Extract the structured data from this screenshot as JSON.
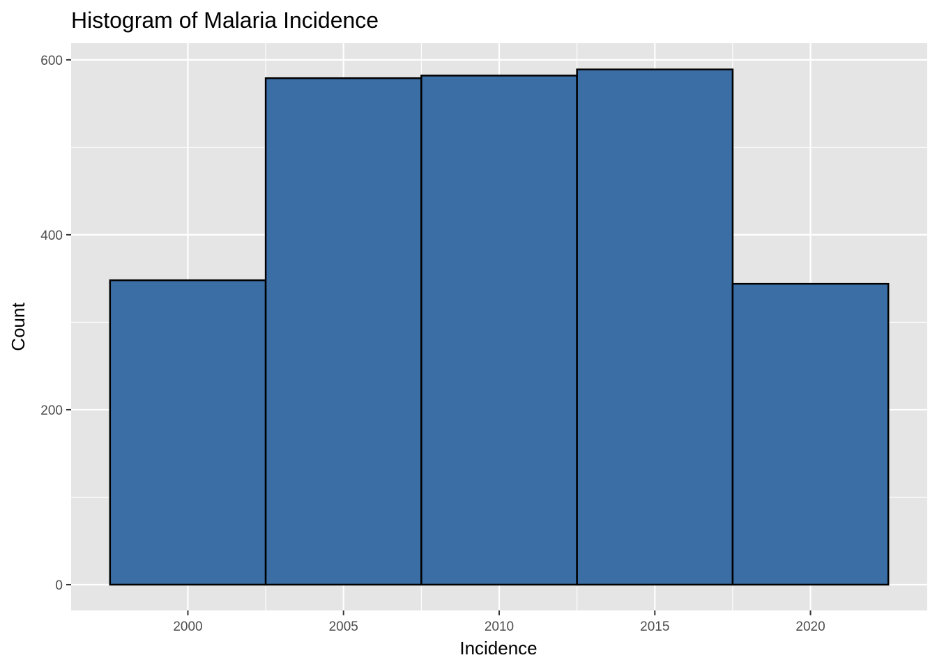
{
  "chart_data": {
    "type": "bar",
    "title": "Histogram of Malaria Incidence",
    "xlabel": "Incidence",
    "ylabel": "Count",
    "bins": [
      {
        "x0": 1997.5,
        "x1": 2002.5,
        "count": 348
      },
      {
        "x0": 2002.5,
        "x1": 2007.5,
        "count": 579
      },
      {
        "x0": 2007.5,
        "x1": 2012.5,
        "count": 582
      },
      {
        "x0": 2012.5,
        "x1": 2017.5,
        "count": 589
      },
      {
        "x0": 2017.5,
        "x1": 2022.5,
        "count": 344
      }
    ],
    "x_ticks": [
      "2000",
      "2005",
      "2010",
      "2015",
      "2020"
    ],
    "y_ticks": [
      "0",
      "200",
      "400",
      "600"
    ],
    "xlim": [
      1996.25,
      2023.75
    ],
    "ylim": [
      -29.5,
      619
    ],
    "grid": true,
    "legend": "none",
    "colors": {
      "bar_fill": "#3A6EA5",
      "bar_outline": "#000000",
      "panel_background": "#E5E5E5",
      "grid": "#FFFFFF"
    }
  }
}
